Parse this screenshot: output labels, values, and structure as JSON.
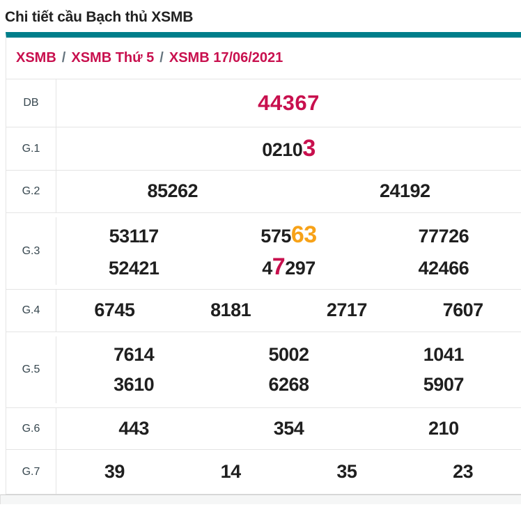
{
  "page": {
    "title": "Chi tiết cầu Bạch thủ XSMB"
  },
  "breadcrumb": {
    "separator": "/",
    "items": [
      "XSMB",
      "XSMB Thứ 5",
      "XSMB 17/06/2021"
    ]
  },
  "colors": {
    "accent_teal": "#007e8a",
    "crimson": "#c8104e",
    "orange": "#f7a218"
  },
  "results_table": {
    "rows": [
      {
        "id": "db",
        "label": "DB",
        "lines": [
          [
            [
              {
                "t": "44367"
              }
            ]
          ]
        ]
      },
      {
        "id": "g1",
        "label": "G.1",
        "lines": [
          [
            [
              {
                "t": "0210"
              },
              {
                "t": "3",
                "hl": "red"
              }
            ]
          ]
        ]
      },
      {
        "id": "g2",
        "label": "G.2",
        "lines": [
          [
            [
              {
                "t": "85262"
              }
            ],
            [
              {
                "t": "24192"
              }
            ]
          ]
        ]
      },
      {
        "id": "g3",
        "label": "G.3",
        "lines": [
          [
            [
              {
                "t": "53117"
              }
            ],
            [
              {
                "t": "575"
              },
              {
                "t": "63",
                "hl": "orange"
              }
            ],
            [
              {
                "t": "77726"
              }
            ]
          ],
          [
            [
              {
                "t": "52421"
              }
            ],
            [
              {
                "t": "4"
              },
              {
                "t": "7",
                "hl": "red"
              },
              {
                "t": "297"
              }
            ],
            [
              {
                "t": "42466"
              }
            ]
          ]
        ]
      },
      {
        "id": "g4",
        "label": "G.4",
        "lines": [
          [
            [
              {
                "t": "6745"
              }
            ],
            [
              {
                "t": "8181"
              }
            ],
            [
              {
                "t": "2717"
              }
            ],
            [
              {
                "t": "7607"
              }
            ]
          ]
        ]
      },
      {
        "id": "g5",
        "label": "G.5",
        "lines": [
          [
            [
              {
                "t": "7614"
              }
            ],
            [
              {
                "t": "5002"
              }
            ],
            [
              {
                "t": "1041"
              }
            ]
          ],
          [
            [
              {
                "t": "3610"
              }
            ],
            [
              {
                "t": "6268"
              }
            ],
            [
              {
                "t": "5907"
              }
            ]
          ]
        ]
      },
      {
        "id": "g6",
        "label": "G.6",
        "lines": [
          [
            [
              {
                "t": "443"
              }
            ],
            [
              {
                "t": "354"
              }
            ],
            [
              {
                "t": "210"
              }
            ]
          ]
        ]
      },
      {
        "id": "g7",
        "label": "G.7",
        "lines": [
          [
            [
              {
                "t": "39"
              }
            ],
            [
              {
                "t": "14"
              }
            ],
            [
              {
                "t": "35"
              }
            ],
            [
              {
                "t": "23"
              }
            ]
          ]
        ]
      }
    ]
  }
}
